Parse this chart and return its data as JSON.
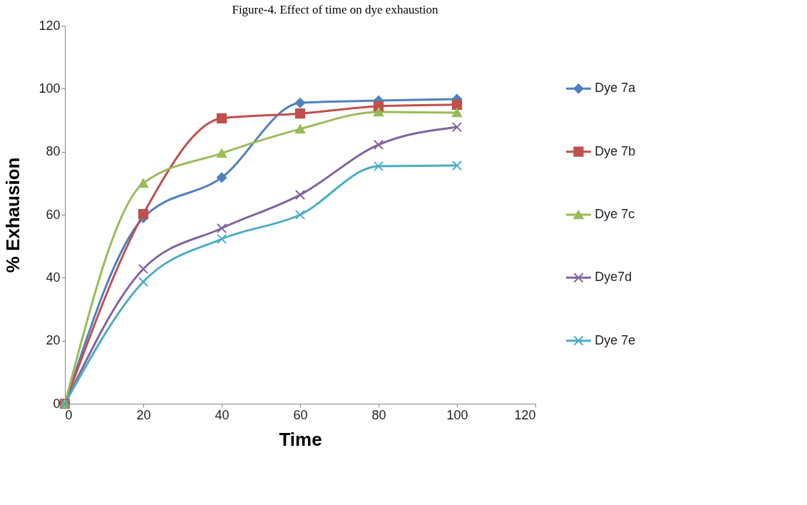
{
  "chart_data": {
    "type": "line",
    "title": "Figure-4. Effect of time on dye exhaustion",
    "xlabel": "Time",
    "ylabel": "% Exhausion",
    "x": [
      0,
      20,
      40,
      60,
      80,
      100
    ],
    "series": [
      {
        "name": "Dye 7a",
        "color": "#4f81bd",
        "marker": "diamond",
        "values": [
          0,
          59,
          71.8,
          95.5,
          96.2,
          96.7
        ]
      },
      {
        "name": "Dye 7b",
        "color": "#c0504d",
        "marker": "square",
        "values": [
          0,
          60.2,
          90.6,
          92.1,
          94.4,
          94.9
        ]
      },
      {
        "name": "Dye 7c",
        "color": "#9bbb59",
        "marker": "triangle",
        "values": [
          0,
          70,
          79.5,
          87.2,
          92.6,
          92.4
        ]
      },
      {
        "name": "Dye7d",
        "color": "#8064a2",
        "marker": "cross",
        "values": [
          0,
          42.8,
          55.7,
          66.3,
          82.2,
          87.8
        ]
      },
      {
        "name": "Dye 7e",
        "color": "#4bacc6",
        "marker": "cross",
        "values": [
          0,
          38.7,
          52.3,
          60,
          75.4,
          75.6
        ]
      }
    ],
    "xlim": [
      0,
      120
    ],
    "xticks": [
      0,
      20,
      40,
      60,
      80,
      100,
      120
    ],
    "ylim": [
      0,
      120
    ],
    "yticks": [
      0,
      20,
      40,
      60,
      80,
      100,
      120
    ],
    "grid": false,
    "legend": "right",
    "line_style": "solid"
  }
}
